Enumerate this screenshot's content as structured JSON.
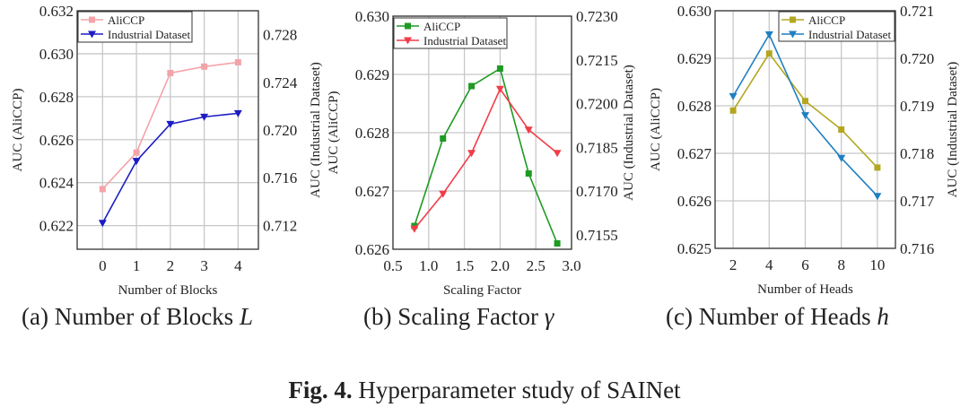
{
  "chart_data": [
    {
      "type": "line",
      "panel": "a",
      "x": [
        0,
        1,
        2,
        3,
        4
      ],
      "xticks": [
        "0",
        "1",
        "2",
        "3",
        "4"
      ],
      "xtick_values": [
        0,
        1,
        2,
        3,
        4
      ],
      "xlim": [
        -0.75,
        4.6
      ],
      "xlabel": "Number of Blocks",
      "ylabel": "AUC (AliCCP)",
      "ylim": [
        0.6209,
        0.632
      ],
      "yticks": [
        "0.622",
        "0.624",
        "0.626",
        "0.628",
        "0.630",
        "0.632"
      ],
      "ytick_values": [
        0.622,
        0.624,
        0.626,
        0.628,
        0.63,
        0.632
      ],
      "y2label": "AUC (Industrial Dataset)",
      "y2lim": [
        0.71,
        0.73
      ],
      "y2ticks": [
        "0.712",
        "0.716",
        "0.720",
        "0.724",
        "0.728"
      ],
      "y2tick_values": [
        0.712,
        0.716,
        0.72,
        0.724,
        0.728
      ],
      "grid": true,
      "legend_position": "top-left",
      "series": [
        {
          "name": "AliCCP",
          "axis": "left",
          "marker": "square",
          "color": "#f4a3a8",
          "values": [
            0.6237,
            0.6254,
            0.6291,
            0.6294,
            0.6296
          ]
        },
        {
          "name": "Industrial Dataset",
          "axis": "right",
          "marker": "triangle-down",
          "color": "#1c1cc4",
          "values": [
            0.7122,
            0.7174,
            0.7205,
            0.7211,
            0.7214
          ]
        }
      ],
      "caption_prefix": "(a) Number of Blocks ",
      "caption_symbol": "L"
    },
    {
      "type": "line",
      "panel": "b",
      "x": [
        0.8,
        1.2,
        1.6,
        2.0,
        2.4,
        2.8
      ],
      "xticks": [
        "0.5",
        "1.0",
        "1.5",
        "2.0",
        "2.5",
        "3.0"
      ],
      "xtick_values": [
        0.5,
        1.0,
        1.5,
        2.0,
        2.5,
        3.0
      ],
      "xlim": [
        0.5,
        3.0
      ],
      "xlabel": "Scaling Factor",
      "ylabel": "AUC (AliCCP)",
      "ylim": [
        0.626,
        0.63
      ],
      "yticks": [
        "0.626",
        "0.627",
        "0.628",
        "0.629",
        "0.630"
      ],
      "ytick_values": [
        0.626,
        0.627,
        0.628,
        0.629,
        0.63
      ],
      "y2label": "AUC (Industrial Dataset)",
      "y2lim": [
        0.715,
        0.723
      ],
      "y2ticks": [
        "0.7155",
        "0.7170",
        "0.7185",
        "0.7200",
        "0.7215",
        "0.7230"
      ],
      "y2tick_values": [
        0.7155,
        0.717,
        0.7185,
        0.72,
        0.7215,
        0.723
      ],
      "grid": true,
      "legend_position": "top-left",
      "series": [
        {
          "name": "AliCCP",
          "axis": "left",
          "marker": "square",
          "color": "#1f9a23",
          "values": [
            0.6264,
            0.6279,
            0.6288,
            0.6291,
            0.6273,
            0.6261
          ]
        },
        {
          "name": "Industrial Dataset",
          "axis": "right",
          "marker": "triangle-down",
          "color": "#f23c48",
          "values": [
            0.7157,
            0.7169,
            0.7183,
            0.7205,
            0.7191,
            0.7183
          ]
        }
      ],
      "caption_prefix": "(b) Scaling Factor ",
      "caption_symbol": "γ"
    },
    {
      "type": "line",
      "panel": "c",
      "x": [
        2,
        4,
        6,
        8,
        10
      ],
      "xticks": [
        "2",
        "4",
        "6",
        "8",
        "10"
      ],
      "xtick_values": [
        2,
        4,
        6,
        8,
        10
      ],
      "xlim": [
        1,
        11
      ],
      "xlabel": "Number of Heads",
      "ylabel": "AUC (AliCCP)",
      "ylim": [
        0.625,
        0.63
      ],
      "yticks": [
        "0.625",
        "0.626",
        "0.627",
        "0.628",
        "0.629",
        "0.630"
      ],
      "ytick_values": [
        0.625,
        0.626,
        0.627,
        0.628,
        0.629,
        0.63
      ],
      "y2label": "AUC (Industrial Dataset)",
      "y2lim": [
        0.716,
        0.721
      ],
      "y2ticks": [
        "0.716",
        "0.717",
        "0.718",
        "0.719",
        "0.720",
        "0.721"
      ],
      "y2tick_values": [
        0.716,
        0.717,
        0.718,
        0.719,
        0.72,
        0.721
      ],
      "grid": true,
      "legend_position": "top-right",
      "series": [
        {
          "name": "AliCCP",
          "axis": "left",
          "marker": "square",
          "color": "#b3a722",
          "values": [
            0.6279,
            0.6291,
            0.6281,
            0.6275,
            0.6267
          ]
        },
        {
          "name": "Industrial Dataset",
          "axis": "right",
          "marker": "triangle-down",
          "color": "#1f7fc2",
          "values": [
            0.7192,
            0.7205,
            0.7188,
            0.7179,
            0.7171
          ]
        }
      ],
      "caption_prefix": "(c) Number of Heads ",
      "caption_symbol": "h"
    }
  ],
  "figure_caption": {
    "label": "Fig. 4.",
    "text": " Hyperparameter study of SAINet"
  }
}
